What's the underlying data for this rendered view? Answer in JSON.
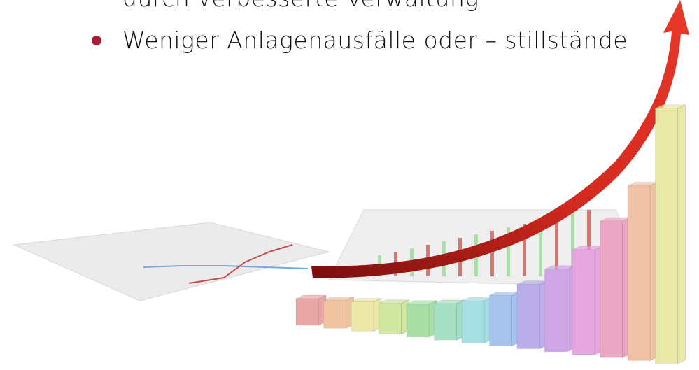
{
  "lines": [
    "durch verbesserte Verwaltung",
    "Weniger Anlagenausfälle oder – stillstände"
  ]
}
